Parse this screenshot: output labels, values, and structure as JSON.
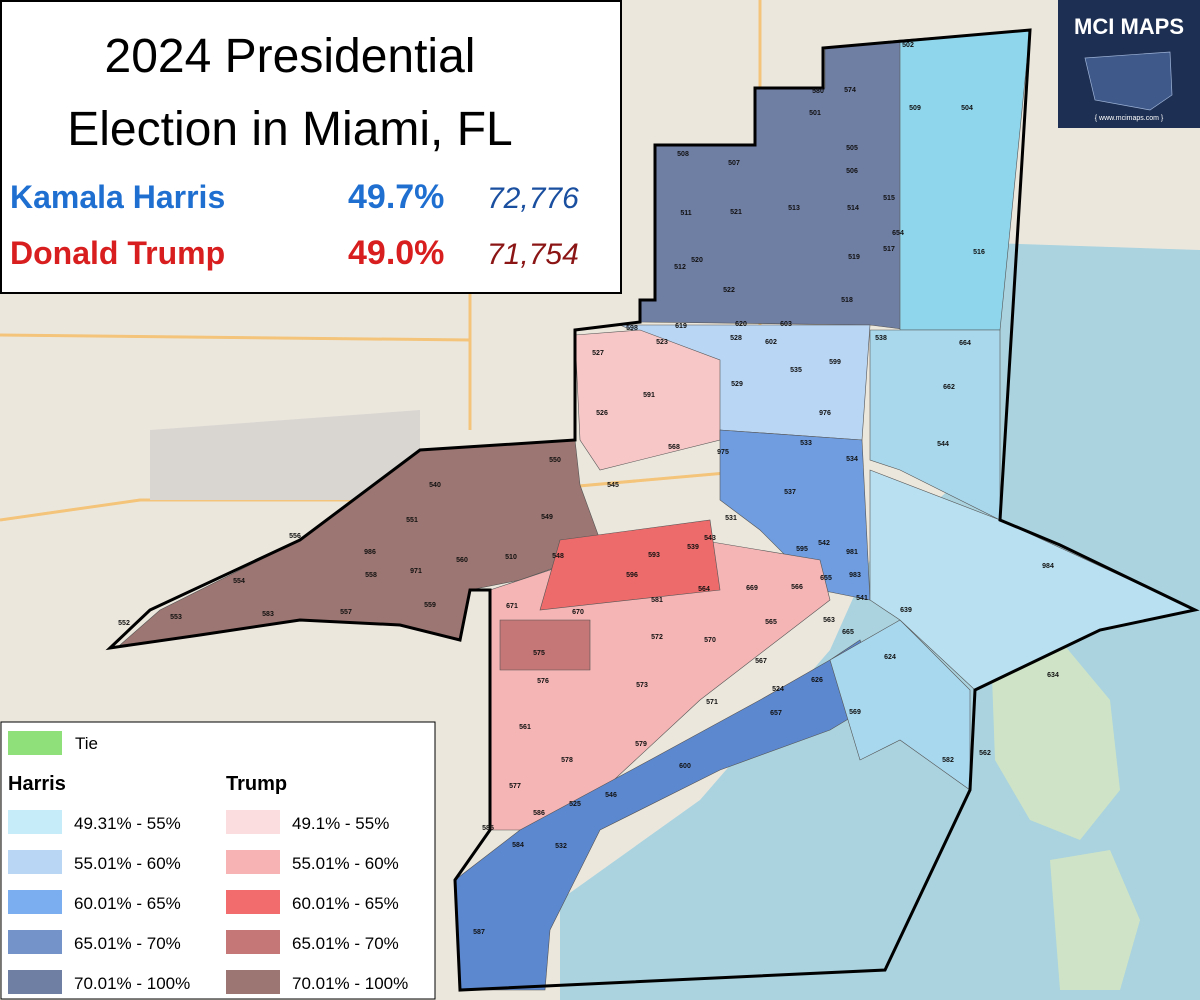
{
  "header": {
    "title_line1": "2024 Presidential",
    "title_line2": "Election in Miami, FL"
  },
  "results": [
    {
      "candidate": "Kamala Harris",
      "percent": "49.7%",
      "votes": "72,776",
      "color": "#1f6fd1",
      "votes_color": "#1a4fa0"
    },
    {
      "candidate": "Donald Trump",
      "percent": "49.0%",
      "votes": "71,754",
      "color": "#d81e1e",
      "votes_color": "#8b1515"
    }
  ],
  "logo": {
    "name": "MCI MAPS",
    "url": "{ www.mcimaps.com }"
  },
  "legend": {
    "tie": {
      "label": "Tie",
      "color": "#8fe07a"
    },
    "groups": [
      {
        "title": "Harris",
        "items": [
          {
            "label": "49.31% - 55%",
            "color": "#c5ecf8"
          },
          {
            "label": "55.01% - 60%",
            "color": "#b9d6f5"
          },
          {
            "label": "60.01% - 65%",
            "color": "#7aaef0"
          },
          {
            "label": "65.01% - 70%",
            "color": "#7493c8"
          },
          {
            "label": "70.01% - 100%",
            "color": "#6f7ea3"
          }
        ]
      },
      {
        "title": "Trump",
        "items": [
          {
            "label": "49.1% - 55%",
            "color": "#fbdde0"
          },
          {
            "label": "55.01% - 60%",
            "color": "#f7b2b4"
          },
          {
            "label": "60.01% - 65%",
            "color": "#f26c6e"
          },
          {
            "label": "65.01% - 70%",
            "color": "#c57677"
          },
          {
            "label": "70.01% - 100%",
            "color": "#9c7672"
          }
        ]
      }
    ]
  },
  "precincts": [
    "502",
    "504",
    "509",
    "574",
    "580",
    "501",
    "505",
    "506",
    "508",
    "507",
    "514",
    "515",
    "513",
    "511",
    "521",
    "512",
    "520",
    "519",
    "517",
    "522",
    "518",
    "516",
    "654",
    "664",
    "662",
    "544",
    "619",
    "620",
    "603",
    "598",
    "523",
    "528",
    "602",
    "538",
    "535",
    "599",
    "529",
    "591",
    "527",
    "526",
    "568",
    "533",
    "975",
    "976",
    "534",
    "537",
    "550",
    "540",
    "545",
    "549",
    "551",
    "556",
    "986",
    "558",
    "971",
    "554",
    "553",
    "552",
    "583",
    "557",
    "559",
    "560",
    "510",
    "548",
    "593",
    "596",
    "539",
    "543",
    "531",
    "595",
    "542",
    "981",
    "983",
    "671",
    "670",
    "581",
    "564",
    "669",
    "566",
    "655",
    "541",
    "563",
    "665",
    "565",
    "639",
    "624",
    "572",
    "570",
    "567",
    "575",
    "576",
    "573",
    "571",
    "524",
    "626",
    "657",
    "569",
    "582",
    "562",
    "561",
    "578",
    "579",
    "600",
    "577",
    "546",
    "525",
    "586",
    "585",
    "584",
    "532",
    "587",
    "634",
    "984"
  ]
}
